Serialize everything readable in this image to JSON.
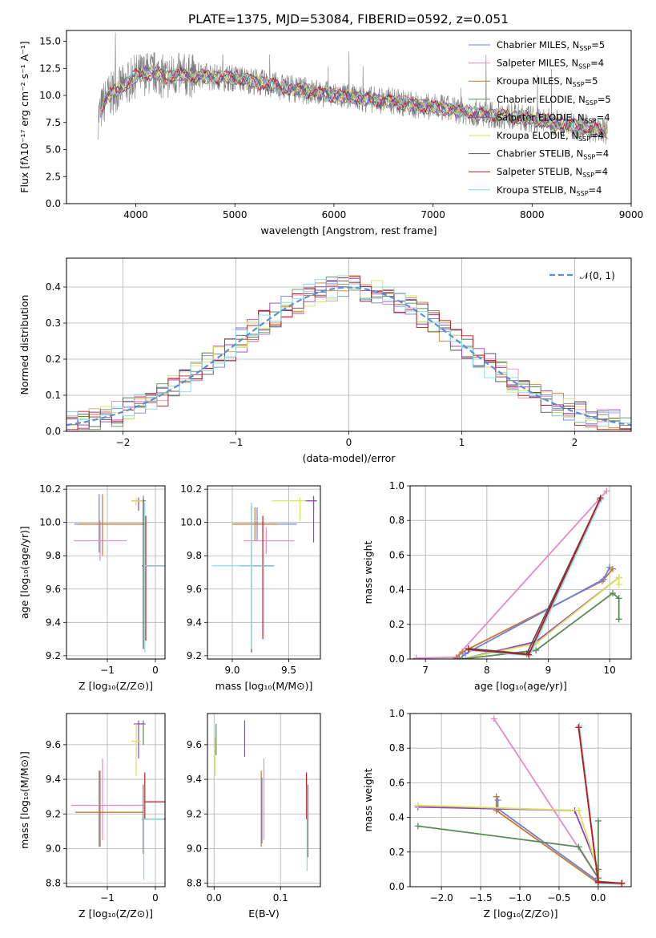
{
  "figure_title": "PLATE=1375, MJD=53084, FIBERID=0592, z=0.051",
  "colors": {
    "Chabrier MILES": "#6f7fe0",
    "Salpeter MILES": "#e68ac8",
    "Kroupa MILES": "#c8782c",
    "Chabrier ELODIE": "#5a8a5a",
    "Salpeter ELODIE": "#9a3fc8",
    "Kroupa ELODIE": "#d6e45a",
    "Chabrier STELIB": "#555555",
    "Salpeter STELIB": "#c01818",
    "Kroupa STELIB": "#80dcea",
    "data": "#808080",
    "gauss": "#5b8fd8"
  },
  "chart_data": [
    {
      "id": "spectrum",
      "type": "line",
      "title": "PLATE=1375, MJD=53084, FIBERID=0592, z=0.051",
      "xlabel": "wavelength [Angstrom, rest frame]",
      "ylabel": "Flux [fλ10⁻¹⁷ erg cm⁻² s⁻¹ A⁻¹]",
      "xlim": [
        3300,
        9000
      ],
      "ylim": [
        0,
        16
      ],
      "xticks": [
        "4000",
        "5000",
        "6000",
        "7000",
        "8000",
        "9000"
      ],
      "yticks": [
        "0.0",
        "2.5",
        "5.0",
        "7.5",
        "10.0",
        "12.5",
        "15.0"
      ],
      "legend_position": "top-right",
      "series": [
        {
          "name": "Chabrier MILES, N_SSP=5",
          "label_main": "Chabrier MILES, N",
          "label_sub": "SSP",
          "label_tail": "=5"
        },
        {
          "name": "Salpeter MILES, N_SSP=4",
          "label_main": "Salpeter MILES, N",
          "label_sub": "SSP",
          "label_tail": "=4"
        },
        {
          "name": "Kroupa MILES, N_SSP=5",
          "label_main": "Kroupa MILES, N",
          "label_sub": "SSP",
          "label_tail": "=5"
        },
        {
          "name": "Chabrier ELODIE, N_SSP=5",
          "label_main": "Chabrier ELODIE, N",
          "label_sub": "SSP",
          "label_tail": "=5"
        },
        {
          "name": "Salpeter ELODIE, N_SSP=4",
          "label_main": "Salpeter ELODIE, N",
          "label_sub": "SSP",
          "label_tail": "=4"
        },
        {
          "name": "Kroupa ELODIE, N_SSP=4",
          "label_main": "Kroupa ELODIE, N",
          "label_sub": "SSP",
          "label_tail": "=4"
        },
        {
          "name": "Chabrier STELIB, N_SSP=4",
          "label_main": "Chabrier STELIB, N",
          "label_sub": "SSP",
          "label_tail": "=4"
        },
        {
          "name": "Salpeter STELIB, N_SSP=4",
          "label_main": "Salpeter STELIB, N",
          "label_sub": "SSP",
          "label_tail": "=4"
        },
        {
          "name": "Kroupa STELIB, N_SSP=4",
          "label_main": "Kroupa STELIB, N",
          "label_sub": "SSP",
          "label_tail": "=4"
        }
      ],
      "continuum": {
        "wavelength": [
          3620,
          3700,
          3800,
          3900,
          4000,
          4100,
          4200,
          4300,
          4400,
          4600,
          4800,
          5000,
          5200,
          5400,
          5600,
          5800,
          6000,
          6200,
          6400,
          6600,
          6800,
          7000,
          7200,
          7400,
          7600,
          7800,
          8000,
          8200,
          8400,
          8600,
          8750
        ],
        "flux": [
          8.0,
          9.8,
          10.4,
          11.0,
          11.8,
          12.0,
          12.1,
          11.6,
          11.9,
          11.8,
          11.7,
          11.6,
          11.3,
          10.9,
          10.6,
          10.3,
          10.0,
          9.8,
          9.6,
          9.5,
          9.1,
          8.9,
          8.7,
          8.4,
          8.2,
          8.1,
          7.8,
          7.5,
          7.2,
          6.9,
          6.6
        ]
      }
    },
    {
      "id": "residual-histogram",
      "type": "histogram",
      "xlabel": "(data-model)/error",
      "ylabel": "Normed distribution",
      "xlim": [
        -2.5,
        2.5
      ],
      "ylim": [
        0,
        0.48
      ],
      "xticks": [
        "−2",
        "−1",
        "0",
        "1",
        "2"
      ],
      "yticks": [
        "0.0",
        "0.1",
        "0.2",
        "0.3",
        "0.4"
      ],
      "grid": true,
      "legend_position": "top-right",
      "gauss_label": "𝒩(0, 1)",
      "bin_width": 0.1
    },
    {
      "id": "age-vs-z",
      "type": "errorbar",
      "xlabel": "Z [log₁₀(Z/Z⊙)]",
      "ylabel": "age  [log₁₀(age/yr)]",
      "xlim": [
        -1.85,
        0.2
      ],
      "ylim": [
        9.18,
        10.22
      ],
      "xticks": [
        "−1",
        "0"
      ],
      "yticks": [
        "9.2",
        "9.4",
        "9.6",
        "9.8",
        "10.0",
        "10.2"
      ],
      "points": [
        {
          "series": "Chabrier MILES",
          "x": -1.17,
          "y": 9.99,
          "xerr": [
            0.52,
            0.98
          ],
          "yerr": [
            0.17,
            0.18
          ]
        },
        {
          "series": "Salpeter MILES",
          "x": -1.15,
          "y": 9.89,
          "xerr": [
            0.55,
            0.55
          ],
          "yerr": [
            0.12,
            0.12
          ]
        },
        {
          "series": "Kroupa MILES",
          "x": -1.1,
          "y": 9.99,
          "xerr": [
            0.5,
            0.9
          ],
          "yerr": [
            0.19,
            0.18
          ]
        },
        {
          "series": "Chabrier ELODIE",
          "x": -0.25,
          "y": 10.13,
          "xerr": [
            0.05,
            0.05
          ],
          "yerr": [
            0.12,
            0.03
          ]
        },
        {
          "series": "Salpeter ELODIE",
          "x": -0.35,
          "y": 10.13,
          "xerr": [
            0.15,
            0.1
          ],
          "yerr": [
            0.06,
            0.02
          ]
        },
        {
          "series": "Kroupa ELODIE",
          "x": -0.4,
          "y": 10.13,
          "xerr": [
            0.1,
            0.15
          ],
          "yerr": [
            0.03,
            0.02
          ]
        },
        {
          "series": "Chabrier STELIB",
          "x": -0.25,
          "y": 9.74,
          "xerr": [
            0.03,
            0.45
          ],
          "yerr": [
            0.5,
            0.4
          ]
        },
        {
          "series": "Salpeter STELIB",
          "x": -0.2,
          "y": 9.74,
          "xerr": [
            0.03,
            0.4
          ],
          "yerr": [
            0.45,
            0.3
          ]
        },
        {
          "series": "Kroupa STELIB",
          "x": -0.22,
          "y": 9.74,
          "xerr": [
            0.03,
            0.42
          ],
          "yerr": [
            0.52,
            0.38
          ]
        }
      ]
    },
    {
      "id": "age-vs-mass",
      "type": "errorbar",
      "xlabel": "mass [log₁₀(M/M⊙)]",
      "ylabel": "",
      "xlim": [
        8.78,
        9.78
      ],
      "ylim": [
        9.18,
        10.22
      ],
      "xticks": [
        "9.0",
        "9.5"
      ],
      "yticks": [
        "9.2",
        "9.4",
        "9.6",
        "9.8",
        "10.0",
        "10.2"
      ],
      "points": [
        {
          "series": "Chabrier MILES",
          "x": 9.22,
          "y": 9.99,
          "xerr": [
            0.2,
            0.35
          ],
          "yerr": [
            0.1,
            0.1
          ]
        },
        {
          "series": "Salpeter MILES",
          "x": 9.3,
          "y": 9.89,
          "xerr": [
            0.2,
            0.25
          ],
          "yerr": [
            0.08,
            0.08
          ]
        },
        {
          "series": "Kroupa MILES",
          "x": 9.2,
          "y": 9.99,
          "xerr": [
            0.2,
            0.2
          ],
          "yerr": [
            0.1,
            0.1
          ]
        },
        {
          "series": "Chabrier ELODIE",
          "x": 9.72,
          "y": 10.13,
          "xerr": [
            0.08,
            0.02
          ],
          "yerr": [
            0.06,
            0.02
          ]
        },
        {
          "series": "Salpeter ELODIE",
          "x": 9.72,
          "y": 10.13,
          "xerr": [
            0.06,
            0.03
          ],
          "yerr": [
            0.25,
            0.03
          ]
        },
        {
          "series": "Kroupa ELODIE",
          "x": 9.6,
          "y": 10.13,
          "xerr": [
            0.25,
            0.05
          ],
          "yerr": [
            0.12,
            0.02
          ]
        },
        {
          "series": "Chabrier STELIB",
          "x": 9.17,
          "y": 9.74,
          "xerr": [
            0.1,
            0.2
          ],
          "yerr": [
            0.52,
            0.36
          ]
        },
        {
          "series": "Salpeter STELIB",
          "x": 9.27,
          "y": 9.74,
          "xerr": [
            0.1,
            0.1
          ],
          "yerr": [
            0.44,
            0.3
          ]
        },
        {
          "series": "Kroupa STELIB",
          "x": 9.17,
          "y": 9.74,
          "xerr": [
            0.35,
            0.2
          ],
          "yerr": [
            0.5,
            0.38
          ]
        }
      ]
    },
    {
      "id": "mass-weight-vs-age",
      "type": "line",
      "xlabel": "age  [log₁₀(age/yr)]",
      "ylabel": "mass weight",
      "xlim": [
        6.75,
        10.35
      ],
      "ylim": [
        0,
        1.0
      ],
      "xticks": [
        "7",
        "8",
        "9",
        "10"
      ],
      "yticks": [
        "0.0",
        "0.2",
        "0.4",
        "0.6",
        "0.8",
        "1.0"
      ],
      "grid": true,
      "series": [
        {
          "name": "Salpeter MILES",
          "x": [
            6.85,
            7.5,
            9.95
          ],
          "y": [
            0.005,
            0.01,
            0.97
          ]
        },
        {
          "name": "Kroupa MILES",
          "x": [
            7.5,
            7.6,
            9.88,
            10.05
          ],
          "y": [
            0.005,
            0.04,
            0.45,
            0.52
          ]
        },
        {
          "name": "Chabrier MILES",
          "x": [
            7.55,
            7.65,
            9.9,
            10.0
          ],
          "y": [
            0.0,
            0.03,
            0.46,
            0.53
          ]
        },
        {
          "name": "Salpeter ELODIE",
          "x": [
            7.6,
            8.8,
            10.15
          ],
          "y": [
            0.0,
            0.1,
            0.47
          ]
        },
        {
          "name": "Kroupa ELODIE",
          "x": [
            7.6,
            8.8,
            10.15,
            10.15
          ],
          "y": [
            0.0,
            0.09,
            0.47,
            0.43
          ]
        },
        {
          "name": "Chabrier ELODIE",
          "x": [
            7.6,
            8.8,
            10.05,
            10.15,
            10.15
          ],
          "y": [
            0.0,
            0.05,
            0.38,
            0.35,
            0.23
          ]
        },
        {
          "name": "Chabrier STELIB",
          "x": [
            7.7,
            8.65,
            9.84
          ],
          "y": [
            0.06,
            0.03,
            0.92
          ]
        },
        {
          "name": "Kroupa STELIB",
          "x": [
            7.7,
            8.7,
            9.86
          ],
          "y": [
            0.05,
            0.02,
            0.92
          ]
        },
        {
          "name": "Salpeter STELIB",
          "x": [
            7.7,
            8.68,
            9.85
          ],
          "y": [
            0.055,
            0.025,
            0.93
          ]
        }
      ]
    },
    {
      "id": "mass-vs-z",
      "type": "errorbar",
      "xlabel": "Z [log₁₀(Z/Z⊙)]",
      "ylabel": "mass [log₁₀(M/M⊙)]",
      "xlim": [
        -1.85,
        0.2
      ],
      "ylim": [
        8.78,
        9.78
      ],
      "xticks": [
        "−1",
        "0"
      ],
      "yticks": [
        "8.8",
        "9.0",
        "9.2",
        "9.4",
        "9.6"
      ],
      "points": [
        {
          "series": "Chabrier MILES",
          "x": -1.17,
          "y": 9.21,
          "xerr": [
            0.5,
            0.9
          ],
          "yerr": [
            0.2,
            0.24
          ]
        },
        {
          "series": "Salpeter MILES",
          "x": -1.1,
          "y": 9.25,
          "xerr": [
            0.65,
            0.85
          ],
          "yerr": [
            0.2,
            0.27
          ]
        },
        {
          "series": "Kroupa MILES",
          "x": -1.15,
          "y": 9.21,
          "xerr": [
            0.5,
            0.9
          ],
          "yerr": [
            0.2,
            0.24
          ]
        },
        {
          "series": "Chabrier ELODIE",
          "x": -0.25,
          "y": 9.72,
          "xerr": [
            0.05,
            0.05
          ],
          "yerr": [
            0.12,
            0.02
          ]
        },
        {
          "series": "Salpeter ELODIE",
          "x": -0.35,
          "y": 9.72,
          "xerr": [
            0.1,
            0.1
          ],
          "yerr": [
            0.2,
            0.02
          ]
        },
        {
          "series": "Kroupa ELODIE",
          "x": -0.4,
          "y": 9.62,
          "xerr": [
            0.1,
            0.1
          ],
          "yerr": [
            0.2,
            0.1
          ]
        },
        {
          "series": "Chabrier STELIB",
          "x": -0.25,
          "y": 9.17,
          "xerr": [
            0.03,
            0.45
          ],
          "yerr": [
            0.2,
            0.2
          ]
        },
        {
          "series": "Salpeter STELIB",
          "x": -0.22,
          "y": 9.27,
          "xerr": [
            0.03,
            0.42
          ],
          "yerr": [
            0.1,
            0.17
          ]
        },
        {
          "series": "Kroupa STELIB",
          "x": -0.24,
          "y": 9.17,
          "xerr": [
            0.03,
            0.42
          ],
          "yerr": [
            0.35,
            0.2
          ]
        }
      ]
    },
    {
      "id": "mass-vs-ebv",
      "type": "errorbar",
      "xlabel": "E(B-V)",
      "ylabel": "",
      "xlim": [
        -0.01,
        0.16
      ],
      "ylim": [
        8.78,
        9.78
      ],
      "xticks": [
        "0.0",
        "0.1"
      ],
      "yticks": [
        "8.8",
        "9.0",
        "9.2",
        "9.4",
        "9.6"
      ],
      "points": [
        {
          "series": "Kroupa MILES",
          "x": 0.071,
          "y": 9.21,
          "xerr": [
            0,
            0
          ],
          "yerr": [
            0.2,
            0.24
          ]
        },
        {
          "series": "Salpeter MILES",
          "x": 0.075,
          "y": 9.25,
          "xerr": [
            0,
            0
          ],
          "yerr": [
            0.2,
            0.27
          ]
        },
        {
          "series": "Chabrier MILES",
          "x": 0.072,
          "y": 9.21,
          "xerr": [
            0,
            0
          ],
          "yerr": [
            0.18,
            0.2
          ]
        },
        {
          "series": "Salpeter ELODIE",
          "x": 0.046,
          "y": 9.63,
          "xerr": [
            0,
            0
          ],
          "yerr": [
            0.1,
            0.11
          ]
        },
        {
          "series": "Kroupa ELODIE",
          "x": 0.002,
          "y": 9.6,
          "xerr": [
            0,
            0
          ],
          "yerr": [
            0.18,
            0.04
          ]
        },
        {
          "series": "Chabrier ELODIE",
          "x": 0.003,
          "y": 9.62,
          "xerr": [
            0,
            0
          ],
          "yerr": [
            0.08,
            0.1
          ]
        },
        {
          "series": "Chabrier STELIB",
          "x": 0.141,
          "y": 9.17,
          "xerr": [
            0,
            0
          ],
          "yerr": [
            0.22,
            0.2
          ]
        },
        {
          "series": "Salpeter STELIB",
          "x": 0.139,
          "y": 9.27,
          "xerr": [
            0,
            0
          ],
          "yerr": [
            0.1,
            0.17
          ]
        },
        {
          "series": "Kroupa STELIB",
          "x": 0.14,
          "y": 9.17,
          "xerr": [
            0,
            0
          ],
          "yerr": [
            0.3,
            0.2
          ]
        }
      ]
    },
    {
      "id": "mass-weight-vs-z",
      "type": "line",
      "xlabel": "Z [log₁₀(Z/Z⊙)]",
      "ylabel": "mass weight",
      "xlim": [
        -2.4,
        0.42
      ],
      "ylim": [
        0,
        1.0
      ],
      "xticks": [
        "−2.0",
        "−1.5",
        "−1.0",
        "−0.5",
        "0.0"
      ],
      "yticks": [
        "0.0",
        "0.2",
        "0.4",
        "0.6",
        "0.8",
        "1.0"
      ],
      "grid": true,
      "series": [
        {
          "name": "Salpeter MILES",
          "x": [
            -1.33,
            0.0
          ],
          "y": [
            0.97,
            0.05
          ]
        },
        {
          "name": "Kroupa MILES",
          "x": [
            -1.3,
            -1.3,
            0.0
          ],
          "y": [
            0.52,
            0.44,
            0.02
          ]
        },
        {
          "name": "Chabrier MILES",
          "x": [
            -1.28,
            -1.28,
            0.0
          ],
          "y": [
            0.5,
            0.45,
            0.03
          ]
        },
        {
          "name": "Salpeter ELODIE",
          "x": [
            -2.3,
            -0.3,
            0.0
          ],
          "y": [
            0.46,
            0.44,
            0.1
          ]
        },
        {
          "name": "Kroupa ELODIE",
          "x": [
            -2.3,
            -0.25,
            0.0
          ],
          "y": [
            0.47,
            0.44,
            0.09
          ]
        },
        {
          "name": "Chabrier ELODIE",
          "x": [
            -2.3,
            -0.25,
            0.0,
            0.0
          ],
          "y": [
            0.35,
            0.23,
            0.05,
            0.38
          ]
        },
        {
          "name": "Chabrier STELIB",
          "x": [
            -0.25,
            0.0,
            0.3
          ],
          "y": [
            0.92,
            0.03,
            0.02
          ]
        },
        {
          "name": "Kroupa STELIB",
          "x": [
            -0.24,
            0.0,
            0.3
          ],
          "y": [
            0.93,
            0.02,
            0.015
          ]
        },
        {
          "name": "Salpeter STELIB",
          "x": [
            -0.25,
            0.0,
            0.3
          ],
          "y": [
            0.92,
            0.025,
            0.02
          ]
        }
      ]
    }
  ]
}
